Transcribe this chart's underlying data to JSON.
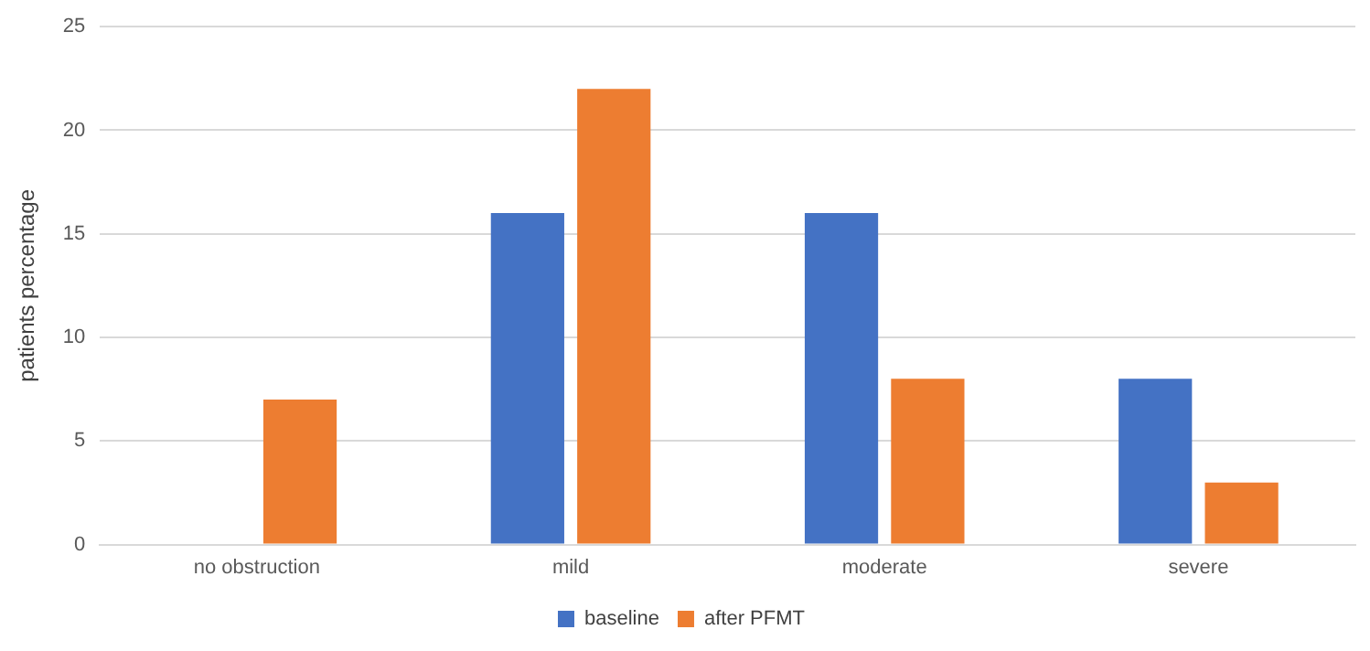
{
  "chart_data": {
    "type": "bar",
    "ylabel": "patients percentage",
    "categories": [
      "no obstruction",
      "mild",
      "moderate",
      "severe"
    ],
    "series": [
      {
        "name": "baseline",
        "color": "#4472c4",
        "values": [
          0,
          16,
          16,
          8
        ]
      },
      {
        "name": "after PFMT",
        "color": "#ed7d31",
        "values": [
          7,
          22,
          8,
          3
        ]
      }
    ],
    "ylim": [
      0,
      25
    ],
    "yticks": [
      0,
      5,
      10,
      15,
      20,
      25
    ],
    "grid": "y",
    "legend": "bottom"
  }
}
